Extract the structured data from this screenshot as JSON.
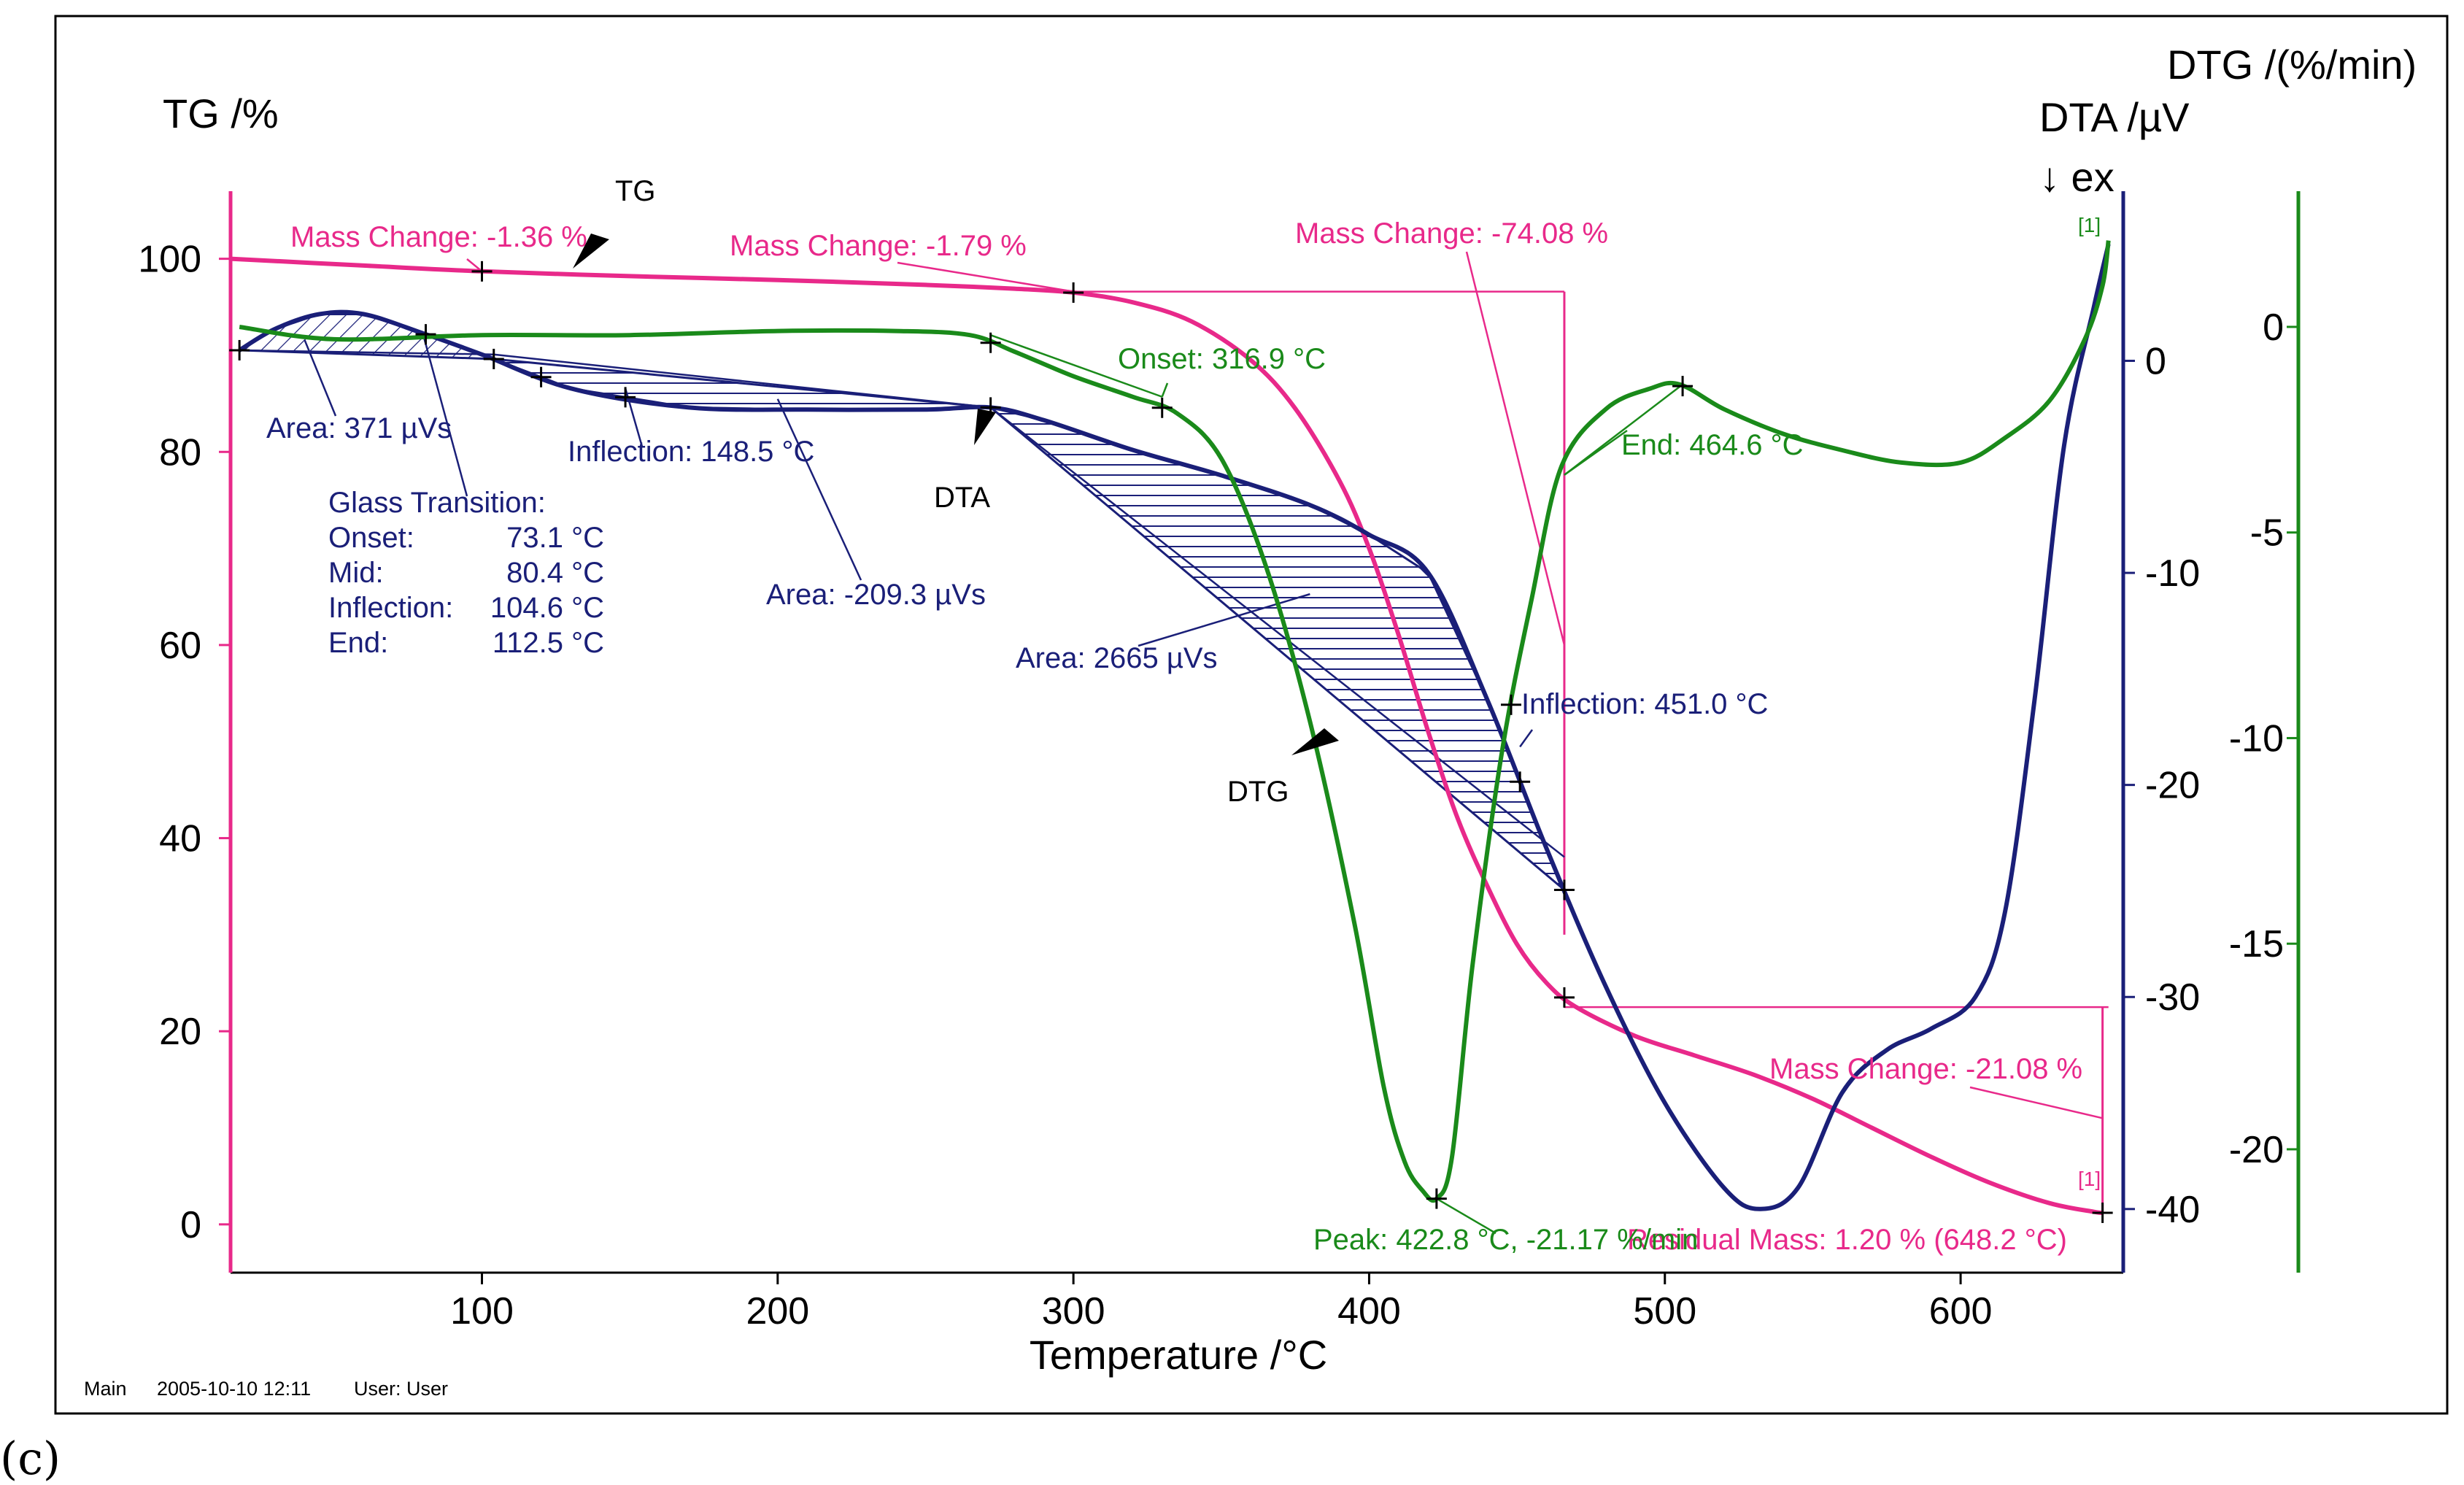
{
  "chart_data": {
    "type": "line",
    "panel_label": "(c)",
    "x_axis": {
      "title": "Temperature /°C",
      "range": [
        15,
        655
      ],
      "ticks": [
        100,
        200,
        300,
        400,
        500,
        600
      ]
    },
    "y_axes": [
      {
        "id": "tg",
        "title": "TG /%",
        "range": [
          -5,
          107
        ],
        "ticks": [
          0,
          20,
          40,
          60,
          80,
          100
        ],
        "color": "#e8298a"
      },
      {
        "id": "dta",
        "title": "DTA /µV",
        "extra_title": "↓ ex",
        "range": [
          -43,
          8
        ],
        "ticks": [
          -40,
          -30,
          -20,
          -10,
          0
        ],
        "color": "#1a1f78"
      },
      {
        "id": "dtg",
        "title": "DTG /(%/min)",
        "range": [
          -23,
          3.3
        ],
        "ticks": [
          -20,
          -15,
          -10,
          -5,
          0
        ],
        "color": "#1a8a1a"
      }
    ],
    "series": [
      {
        "name": "TG",
        "axis": "tg",
        "color": "#e8298a",
        "x": [
          15,
          60,
          100,
          150,
          200,
          250,
          280,
          300,
          320,
          340,
          360,
          375,
          390,
          400,
          410,
          420,
          430,
          440,
          450,
          460,
          470,
          490,
          510,
          530,
          550,
          570,
          590,
          610,
          630,
          645,
          648
        ],
        "y": [
          100,
          99.3,
          98.7,
          98.2,
          97.8,
          97.3,
          96.9,
          96.5,
          95.5,
          93.5,
          89.5,
          84.5,
          77,
          70,
          61,
          51,
          42,
          35,
          29,
          25,
          22.5,
          19.5,
          17.5,
          15.5,
          13,
          10,
          7,
          4.3,
          2.2,
          1.3,
          1.2
        ]
      },
      {
        "name": "DTA",
        "axis": "dta",
        "color": "#1a1f78",
        "x": [
          18,
          30,
          45,
          60,
          80,
          100,
          130,
          170,
          210,
          250,
          272,
          290,
          320,
          350,
          380,
          400,
          420,
          440,
          460,
          480,
          500,
          520,
          532,
          545,
          560,
          575,
          590,
          605,
          615,
          625,
          635,
          645,
          650
        ],
        "y": [
          0.5,
          1.5,
          2.2,
          2.2,
          1.3,
          0.3,
          -1.3,
          -2.2,
          -2.3,
          -2.3,
          -2.2,
          -2.8,
          -4.2,
          -5.4,
          -6.8,
          -8.2,
          -10,
          -16,
          -23,
          -29.5,
          -35,
          -39,
          -40,
          -39,
          -34.5,
          -32.5,
          -31.5,
          -30,
          -26,
          -16,
          -4,
          2.5,
          5.5
        ]
      },
      {
        "name": "DTG",
        "axis": "dtg",
        "color": "#1a8a1a",
        "x": [
          18,
          50,
          100,
          150,
          200,
          240,
          265,
          280,
          300,
          320,
          335,
          350,
          365,
          380,
          395,
          405,
          412,
          418,
          422.8,
          428,
          435,
          445,
          455,
          465,
          480,
          495,
          505,
          520,
          540,
          560,
          580,
          600,
          615,
          630,
          642,
          648,
          650
        ],
        "y": [
          0,
          -0.3,
          -0.2,
          -0.2,
          -0.1,
          -0.1,
          -0.2,
          -0.6,
          -1.2,
          -1.7,
          -2.1,
          -3.2,
          -5.8,
          -9.6,
          -14.5,
          -18.5,
          -20.3,
          -21,
          -21.2,
          -20.2,
          -15.5,
          -10.3,
          -6.6,
          -3.4,
          -2,
          -1.5,
          -1.4,
          -2,
          -2.6,
          -3,
          -3.3,
          -3.3,
          -2.7,
          -1.8,
          -0.3,
          1,
          2.1
        ]
      }
    ],
    "labels": {
      "tg_series_label": "TG",
      "dta_series_label": "DTA",
      "dtg_series_label": "DTG",
      "mass_change_1": "Mass Change: -1.36 %",
      "mass_change_2": "Mass Change: -1.79 %",
      "mass_change_3": "Mass Change: -74.08 %",
      "mass_change_4": "Mass Change: -21.08 %",
      "residual_mass": "Residual Mass: 1.20 % (648.2 °C)",
      "area_1": "Area: 371 µVs",
      "area_2": "Area: -209.3 µVs",
      "area_3": "Area: 2665 µVs",
      "inflection_dta_1": "Inflection: 148.5 °C",
      "inflection_dta_2": "Inflection: 451.0 °C",
      "glass_transition": {
        "title": "Glass Transition:",
        "rows": [
          {
            "label": "Onset:",
            "value": "73.1 °C"
          },
          {
            "label": "Mid:",
            "value": "80.4 °C"
          },
          {
            "label": "Inflection:",
            "value": "104.6 °C"
          },
          {
            "label": "End:",
            "value": "112.5 °C"
          }
        ]
      },
      "onset_dtg": "Onset: 316.9 °C",
      "end_dtg": "End: 464.6 °C",
      "peak_dtg": "Peak: 422.8 °C, -21.17 %/min",
      "marker_1_top": "[1]",
      "marker_1_bottom": "[1]"
    },
    "footer": {
      "segment": "Main",
      "datetime": "2005-10-10 12:11",
      "user": "User: User"
    }
  }
}
